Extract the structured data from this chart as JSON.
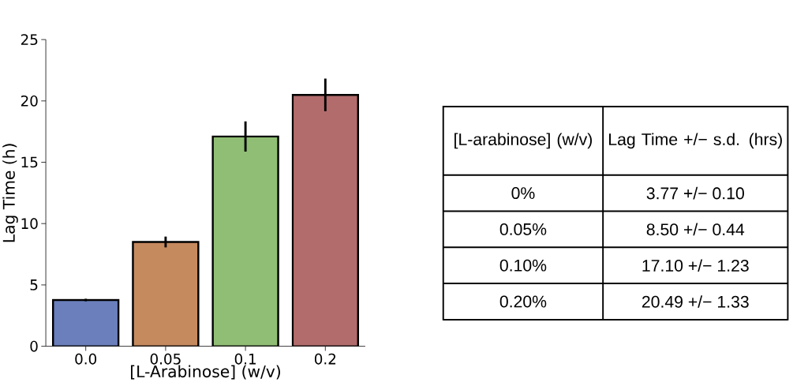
{
  "chart_data": {
    "type": "bar",
    "xlabel": "[L-Arabinose] (w/v)",
    "ylabel": "Lag Time (h)",
    "categories": [
      "0.0",
      "0.05",
      "0.1",
      "0.2"
    ],
    "values": [
      3.77,
      8.5,
      17.1,
      20.49
    ],
    "errors": [
      0.1,
      0.44,
      1.23,
      1.33
    ],
    "colors": [
      "#6a7fbb",
      "#c68a5f",
      "#90be74",
      "#b26c6c"
    ],
    "ylim": [
      0,
      25
    ],
    "yticks": [
      0,
      5,
      10,
      15,
      20,
      25
    ],
    "annotations": [
      "[L-arabinose] (w/v)",
      "Lag Time +/− s.d. (hrs)",
      "0%",
      "0.05%",
      "0.10%",
      "0.20%",
      "3.77  +/− 0.10",
      "8.50  +/− 0.44",
      "17.10  +/− 1.23",
      "20.49  +/− 1.33"
    ]
  }
}
